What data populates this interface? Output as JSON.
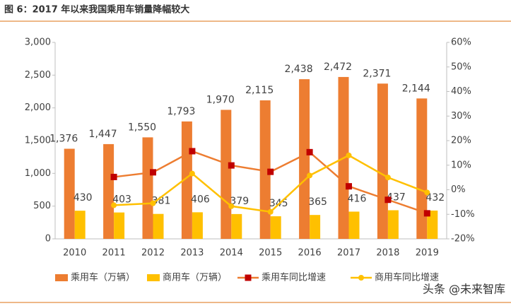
{
  "chart_data": {
    "type": "bar",
    "title": "图 6：2017 年以来我国乘用车销量降幅较大",
    "watermark": "头条 @未来智库",
    "categories": [
      "2010",
      "2011",
      "2012",
      "2013",
      "2014",
      "2015",
      "2016",
      "2017",
      "2018",
      "2019"
    ],
    "series": [
      {
        "name": "乘用车（万辆）",
        "type": "bar",
        "color": "#ED7D31",
        "values": [
          1376,
          1447,
          1550,
          1793,
          1970,
          2115,
          2438,
          2472,
          2371,
          2144
        ],
        "value_labels": [
          "1,376",
          "1,447",
          "1,550",
          "1,793",
          "1,970",
          "2,115",
          "2,438",
          "2,472",
          "2,371",
          "2,144"
        ]
      },
      {
        "name": "商用车（万辆）",
        "type": "bar",
        "color": "#FFC000",
        "values": [
          430,
          403,
          381,
          406,
          379,
          345,
          365,
          416,
          437,
          432
        ]
      },
      {
        "name": "乘用车同比增速",
        "type": "line",
        "axis": "y2",
        "color": "#ED7D31",
        "marker": "square",
        "marker_color": "#C00000",
        "values": [
          null,
          5.2,
          7.1,
          15.7,
          9.9,
          7.3,
          15.3,
          1.4,
          -4.1,
          -9.6
        ]
      },
      {
        "name": "商用车同比增速",
        "type": "line",
        "axis": "y2",
        "color": "#FFC000",
        "marker": "circle",
        "marker_color": "#FFC000",
        "values": [
          null,
          -6.3,
          -5.5,
          6.6,
          -6.7,
          -9.0,
          5.8,
          14.0,
          5.0,
          -1.1
        ]
      }
    ],
    "ylim": [
      0,
      3000
    ],
    "yticks": [
      0,
      500,
      {
        "value": 1000,
        "label": "1,000"
      },
      {
        "value": 1500,
        "label": "1,500"
      },
      {
        "value": 2000,
        "label": "2,000"
      },
      {
        "value": 2500,
        "label": "2,500"
      },
      {
        "value": 3000,
        "label": "3,000"
      }
    ],
    "y2lim": [
      -20,
      60
    ],
    "y2ticks": [
      {
        "value": -20,
        "label": "-20%"
      },
      {
        "value": -10,
        "label": "-10%"
      },
      {
        "value": 0,
        "label": "0%"
      },
      {
        "value": 10,
        "label": "10%"
      },
      {
        "value": 20,
        "label": "20%"
      },
      {
        "value": 30,
        "label": "30%"
      },
      {
        "value": 40,
        "label": "40%"
      },
      {
        "value": 50,
        "label": "50%"
      },
      {
        "value": 60,
        "label": "60%"
      }
    ],
    "grid": false
  }
}
